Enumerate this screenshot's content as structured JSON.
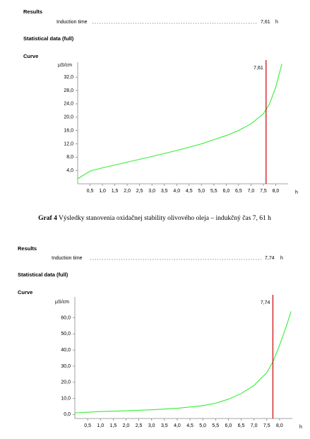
{
  "blocks": [
    {
      "results_heading": "Results",
      "induction_label": "Induction time",
      "induction_unit": "h",
      "stat_heading": "Statistical data (full)",
      "curve_heading": "Curve"
    },
    {
      "results_heading": "Results",
      "induction_label": "Induction time",
      "induction_unit": "h",
      "stat_heading": "Statistical data (full)",
      "curve_heading": "Curve"
    }
  ],
  "caption": {
    "label": "Graf 4",
    "text": "Výsledky stanovenia oxidačnej stability olivového oleja – indukčný čas 7, 61 h"
  },
  "chart_data": [
    {
      "type": "line",
      "y_label": "µS/cm",
      "x_label": "h",
      "color": "#33ee33",
      "x": [
        0,
        0.5,
        1,
        2,
        3,
        4,
        5,
        6,
        6.5,
        7,
        7.5,
        7.75,
        8,
        8.25
      ],
      "values": [
        1.5,
        3.8,
        4.8,
        6.5,
        8.2,
        10,
        12,
        14.5,
        16,
        18,
        21,
        24,
        29,
        36
      ],
      "marker": {
        "value": 7.61,
        "label": "7,61",
        "color": "#cc0000"
      },
      "xlim": [
        0,
        8.5
      ],
      "ylim": [
        0,
        36.5
      ],
      "xticks": [
        {
          "value": 0.5,
          "label": "0,5"
        },
        {
          "value": 1,
          "label": "1,0"
        },
        {
          "value": 1.5,
          "label": "1,5"
        },
        {
          "value": 2,
          "label": "2,0"
        },
        {
          "value": 2.5,
          "label": "2,5"
        },
        {
          "value": 3,
          "label": "3,0"
        },
        {
          "value": 3.5,
          "label": "3,5"
        },
        {
          "value": 4,
          "label": "4,0"
        },
        {
          "value": 4.5,
          "label": "4,5"
        },
        {
          "value": 5,
          "label": "5,0"
        },
        {
          "value": 5.5,
          "label": "5,5"
        },
        {
          "value": 6,
          "label": "6,0"
        },
        {
          "value": 6.5,
          "label": "6,5"
        },
        {
          "value": 7,
          "label": "7,0"
        },
        {
          "value": 7.5,
          "label": "7,5"
        },
        {
          "value": 8,
          "label": "8,0"
        }
      ],
      "yticks": [
        {
          "value": 4,
          "label": "4,0"
        },
        {
          "value": 8,
          "label": "8,0"
        },
        {
          "value": 12,
          "label": "12,0"
        },
        {
          "value": 16,
          "label": "16,0"
        },
        {
          "value": 20,
          "label": "20,0"
        },
        {
          "value": 24,
          "label": "24,0"
        },
        {
          "value": 28,
          "label": "28,0"
        },
        {
          "value": 32,
          "label": "32,0"
        }
      ]
    },
    {
      "type": "line",
      "y_label": "µS/cm",
      "x_label": "h",
      "color": "#33ee33",
      "x": [
        0,
        1,
        2,
        3,
        4,
        5,
        5.5,
        6,
        6.5,
        7,
        7.5,
        7.75,
        8,
        8.25,
        8.45
      ],
      "values": [
        1,
        1.8,
        2.3,
        2.9,
        3.8,
        5.5,
        7,
        9.5,
        13,
        18,
        26,
        33,
        43,
        54,
        64
      ],
      "marker": {
        "value": 7.74,
        "label": "7,74",
        "color": "#cc0000"
      },
      "xlim": [
        0,
        8.5
      ],
      "ylim": [
        -2.5,
        73
      ],
      "xticks": [
        {
          "value": 0.5,
          "label": "0,5"
        },
        {
          "value": 1,
          "label": "1,0"
        },
        {
          "value": 1.5,
          "label": "1,5"
        },
        {
          "value": 2,
          "label": "2,0"
        },
        {
          "value": 2.5,
          "label": "2,5"
        },
        {
          "value": 3,
          "label": "3,0"
        },
        {
          "value": 3.5,
          "label": "3,5"
        },
        {
          "value": 4,
          "label": "4,0"
        },
        {
          "value": 4.5,
          "label": "4,5"
        },
        {
          "value": 5,
          "label": "5,0"
        },
        {
          "value": 5.5,
          "label": "5,5"
        },
        {
          "value": 6,
          "label": "6,0"
        },
        {
          "value": 6.5,
          "label": "6,5"
        },
        {
          "value": 7,
          "label": "7,0"
        },
        {
          "value": 7.5,
          "label": "7,5"
        },
        {
          "value": 8,
          "label": "8,0"
        }
      ],
      "yticks": [
        {
          "value": 0,
          "label": "0,0"
        },
        {
          "value": 10,
          "label": "10,0"
        },
        {
          "value": 20,
          "label": "20,0"
        },
        {
          "value": 30,
          "label": "30,0"
        },
        {
          "value": 40,
          "label": "40,0"
        },
        {
          "value": 50,
          "label": "50,0"
        },
        {
          "value": 60,
          "label": "60,0"
        }
      ]
    }
  ]
}
